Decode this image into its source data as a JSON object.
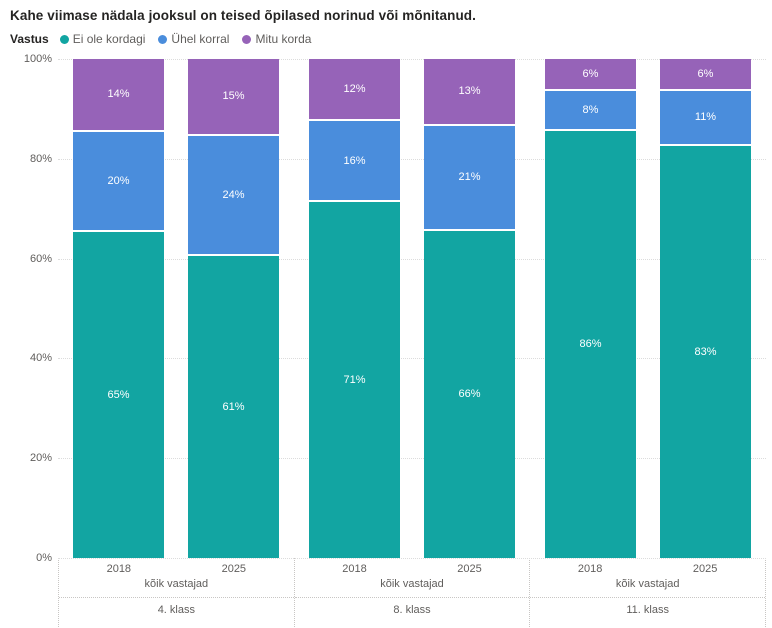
{
  "title": "Kahe viimase nädala jooksul on teised õpilased norinud või mõnitanud.",
  "legend": {
    "title": "Vastus",
    "items": [
      {
        "label": "Ei ole kordagi",
        "color": "#12A5A2"
      },
      {
        "label": "Ühel korral",
        "color": "#4A8DDC"
      },
      {
        "label": "Mitu korda",
        "color": "#9663B8"
      }
    ]
  },
  "chart_data": {
    "type": "bar",
    "variant": "100% stacked column",
    "title": "Kahe viimase nädala jooksul on teised õpilased norinud või mõnitanud.",
    "xlabel": "",
    "ylabel": "",
    "ylim": [
      0,
      100
    ],
    "y_ticks": [
      100,
      80,
      60,
      40,
      20,
      0
    ],
    "y_tick_suffix": "%",
    "grid": "horizontal dotted",
    "legend_position": "top",
    "series": [
      "Ei ole kordagi",
      "Ühel korral",
      "Mitu korda"
    ],
    "colors": {
      "Ei ole kordagi": "#12A5A2",
      "Ühel korral": "#4A8DDC",
      "Mitu korda": "#9663B8"
    },
    "groups": [
      {
        "class_label": "4. klass",
        "respondent_label": "kõik vastajad",
        "bars": [
          {
            "year": "2018",
            "values": [
              65,
              20,
              14
            ],
            "labels": [
              "65%",
              "20%",
              "14%"
            ]
          },
          {
            "year": "2025",
            "values": [
              61,
              24,
              15
            ],
            "labels": [
              "61%",
              "24%",
              "15%"
            ]
          }
        ]
      },
      {
        "class_label": "8. klass",
        "respondent_label": "kõik vastajad",
        "bars": [
          {
            "year": "2018",
            "values": [
              71,
              16,
              12
            ],
            "labels": [
              "71%",
              "16%",
              "12%"
            ]
          },
          {
            "year": "2025",
            "values": [
              66,
              21,
              13
            ],
            "labels": [
              "66%",
              "21%",
              "13%"
            ]
          }
        ]
      },
      {
        "class_label": "11. klass",
        "respondent_label": "kõik vastajad",
        "bars": [
          {
            "year": "2018",
            "values": [
              86,
              8,
              6
            ],
            "labels": [
              "86%",
              "8%",
              "6%"
            ]
          },
          {
            "year": "2025",
            "values": [
              83,
              11,
              6
            ],
            "labels": [
              "83%",
              "11%",
              "6%"
            ]
          }
        ]
      }
    ]
  }
}
